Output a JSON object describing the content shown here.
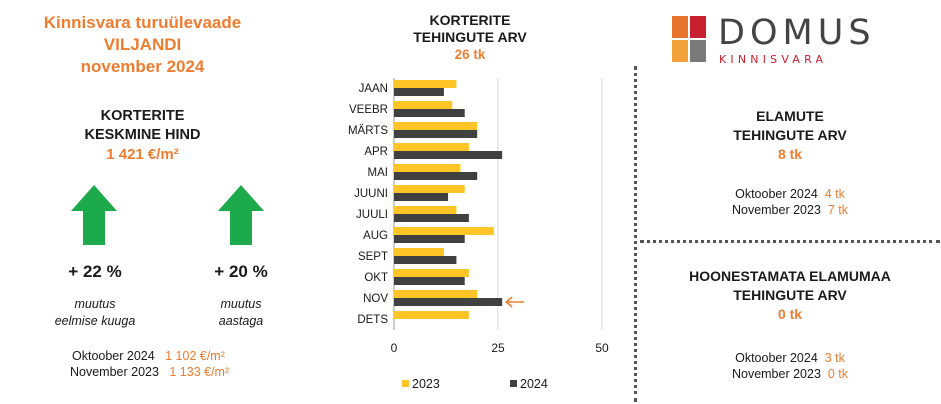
{
  "header": {
    "title_line1": "Kinnisvara turuülevaade",
    "title_line2": "VILJANDI",
    "title_line3": "november 2024"
  },
  "apartments_price": {
    "label_line1": "KORTERITE",
    "label_line2": "KESKMINE HIND",
    "value": "1 421 €/m²"
  },
  "changes": [
    {
      "value": "+ 22 %",
      "caption_line1": "muutus",
      "caption_line2": "eelmise kuuga",
      "arrow_color": "#1DAA4B"
    },
    {
      "value": "+ 20 %",
      "caption_line1": "muutus",
      "caption_line2": "aastaga",
      "arrow_color": "#1DAA4B"
    }
  ],
  "price_comparison": [
    {
      "label": "Oktoober 2024",
      "value": "1 102 €/m²"
    },
    {
      "label": "November 2023",
      "value": "1 133 €/m²"
    }
  ],
  "chart_header": {
    "label_line1": "KORTERITE",
    "label_line2": "TEHINGUTE ARV",
    "value": "26 tk"
  },
  "logo": {
    "word": "DOMUS",
    "sub": "KINNISVARA",
    "colors": [
      "#E8742B",
      "#C8202F",
      "#F3A13B",
      "#7A7A7A"
    ]
  },
  "houses": {
    "label_line1": "ELAMUTE",
    "label_line2": "TEHINGUTE ARV",
    "value": "8 tk",
    "comparison": [
      {
        "label": "Oktoober 2024",
        "value": "4 tk"
      },
      {
        "label": "November 2023",
        "value": "7 tk"
      }
    ]
  },
  "land": {
    "label_line1": "HOONESTAMATA ELAMUMAA",
    "label_line2": "TEHINGUTE ARV",
    "value": "0 tk",
    "comparison": [
      {
        "label": "Oktoober 2024",
        "value": "3 tk"
      },
      {
        "label": "November 2023",
        "value": "0 tk"
      }
    ]
  },
  "chart_data": {
    "type": "bar",
    "orientation": "horizontal",
    "categories": [
      "JAAN",
      "VEEBR",
      "MÄRTS",
      "APR",
      "MAI",
      "JUUNI",
      "JUULI",
      "AUG",
      "SEPT",
      "OKT",
      "NOV",
      "DETS"
    ],
    "series": [
      {
        "name": "2023",
        "color": "#FFC425",
        "values": [
          15,
          14,
          20,
          18,
          16,
          17,
          15,
          24,
          12,
          18,
          20,
          18
        ]
      },
      {
        "name": "2024",
        "color": "#404040",
        "values": [
          12,
          17,
          20,
          26,
          20,
          13,
          18,
          17,
          15,
          17,
          26,
          null
        ]
      }
    ],
    "xlim": [
      0,
      50
    ],
    "xticks": [
      0,
      25,
      50
    ],
    "grid": true,
    "legend": "bottom",
    "highlight_category": "NOV",
    "highlight_color": "#EE7D31"
  }
}
